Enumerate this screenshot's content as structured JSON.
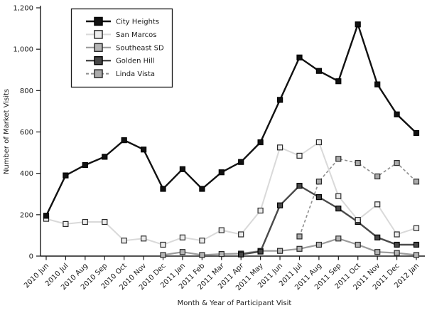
{
  "figure": {
    "background": "#ffffff",
    "text_color": "#1a1a1a"
  },
  "chart_data": {
    "type": "line",
    "title": "",
    "xlabel": "Month & Year of Participant Visit",
    "ylabel": "Number of Market Visits",
    "x_categories": [
      "2010 Jun",
      "2010 Jul",
      "2010 Aug",
      "2010 Sep",
      "2010 Oct",
      "2010 Nov",
      "2010 Dec",
      "2011 Jan",
      "2011 Feb",
      "2011 Mar",
      "2011 Apr",
      "2011 May",
      "2011 Jun",
      "2011 Jul",
      "2011 Aug",
      "2011 Sep",
      "2011 Oct",
      "2011 Nov",
      "2011 Dec",
      "2012 Jan"
    ],
    "ylim": [
      0,
      1200
    ],
    "y_ticks": [
      0,
      200,
      400,
      600,
      800,
      1000,
      1200
    ],
    "y_tick_labels": [
      "0",
      "200",
      "400",
      "600",
      "800",
      "1,000",
      "1,200"
    ],
    "grid": "off",
    "legend_position": "top-left-inside",
    "series": [
      {
        "name": "City Heights",
        "line_color": "#111111",
        "marker_fill": "#111111",
        "marker_edge": "#000000",
        "line_style": "solid",
        "line_width": 2.4,
        "values": [
          195,
          390,
          440,
          480,
          560,
          515,
          325,
          420,
          325,
          405,
          455,
          550,
          755,
          960,
          895,
          845,
          1120,
          830,
          685,
          595
        ]
      },
      {
        "name": "San Marcos",
        "line_color": "#d9d9d9",
        "marker_fill": "#ececec",
        "marker_edge": "#2b2b2b",
        "line_style": "solid",
        "line_width": 2.0,
        "values": [
          180,
          155,
          165,
          165,
          75,
          85,
          55,
          90,
          75,
          125,
          105,
          220,
          525,
          485,
          550,
          290,
          175,
          250,
          105,
          135
        ]
      },
      {
        "name": "Southeast SD",
        "line_color": "#9b9b9b",
        "marker_fill": "#b5b5b5",
        "marker_edge": "#2b2b2b",
        "line_style": "solid",
        "line_width": 2.2,
        "values": [
          null,
          null,
          null,
          null,
          null,
          null,
          5,
          20,
          5,
          10,
          12,
          25,
          25,
          35,
          55,
          85,
          55,
          20,
          15,
          5
        ]
      },
      {
        "name": "Golden Hill",
        "line_color": "#4a4a4a",
        "marker_fill": "#474747",
        "marker_edge": "#000000",
        "line_style": "solid",
        "line_width": 2.4,
        "values": [
          null,
          null,
          null,
          null,
          null,
          null,
          null,
          null,
          null,
          null,
          8,
          22,
          245,
          340,
          285,
          230,
          165,
          90,
          55,
          55
        ]
      },
      {
        "name": "Linda Vista",
        "line_color": "#8f8f8f",
        "marker_fill": "#ababab",
        "marker_edge": "#2b2b2b",
        "line_style": "dashed",
        "line_width": 1.6,
        "values": [
          null,
          null,
          null,
          null,
          null,
          null,
          null,
          null,
          null,
          null,
          null,
          null,
          null,
          95,
          360,
          470,
          450,
          385,
          450,
          360
        ]
      }
    ],
    "draw_order": [
      2,
      4,
      3,
      1,
      0
    ]
  }
}
